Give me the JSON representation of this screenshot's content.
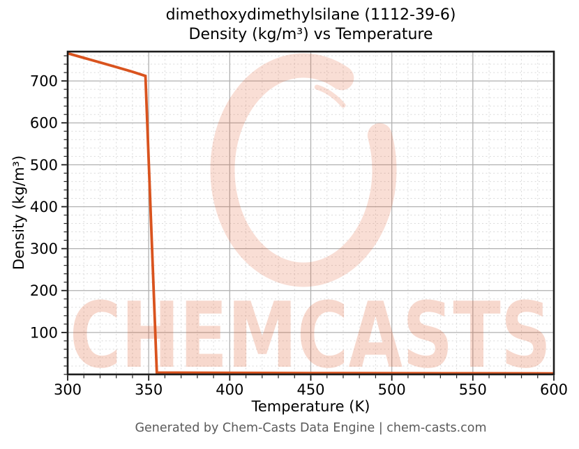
{
  "figure": {
    "title_line1": "dimethoxydimethylsilane (1112-39-6)",
    "title_line2": "Density (kg/m³) vs Temperature",
    "xlabel": "Temperature (K)",
    "ylabel": "Density (kg/m³)",
    "footer": "Generated by Chem-Casts Data Engine | chem-casts.com",
    "watermark_text": "CHEMCASTS",
    "watermark_logo": "brush-stroke-C-ring"
  },
  "colors": {
    "line": "#d9531e",
    "grid_major": "#b0b0b0",
    "grid_minor": "#d9d9d9",
    "spine": "#1c1c1c",
    "tick_label": "#000000",
    "watermark": "#e05a2b",
    "footer_text": "#5a5a5a"
  },
  "chart_data": {
    "type": "line",
    "title": "dimethoxydimethylsilane (1112-39-6)\nDensity (kg/m³) vs Temperature",
    "xlabel": "Temperature (K)",
    "ylabel": "Density (kg/m³)",
    "xlim": [
      300,
      600
    ],
    "ylim": [
      0,
      770
    ],
    "x_ticks": [
      300,
      350,
      400,
      450,
      500,
      550,
      600
    ],
    "y_ticks": [
      100,
      200,
      300,
      400,
      500,
      600,
      700
    ],
    "x_minor_step": 10,
    "y_minor_step": 20,
    "grid": true,
    "legend": false,
    "line_color": "#d9531e",
    "series": [
      {
        "name": "Density",
        "points": [
          [
            300,
            766
          ],
          [
            310,
            755
          ],
          [
            320,
            744
          ],
          [
            330,
            733
          ],
          [
            340,
            722
          ],
          [
            348,
            712
          ],
          [
            355,
            4.1
          ],
          [
            400,
            3.6
          ],
          [
            450,
            3.2
          ],
          [
            500,
            2.9
          ],
          [
            550,
            2.6
          ],
          [
            600,
            2.4
          ]
        ]
      }
    ]
  }
}
